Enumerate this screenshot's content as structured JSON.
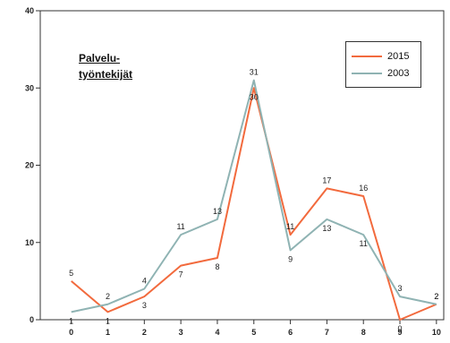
{
  "chart_data": {
    "type": "line",
    "title_lines": [
      "Palvelu-",
      "työntekijät"
    ],
    "x": [
      0,
      1,
      2,
      3,
      4,
      5,
      6,
      7,
      8,
      9,
      10
    ],
    "x_tick_labels": [
      "0",
      "1",
      "2",
      "3",
      "4",
      "5",
      "6",
      "7",
      "8",
      "9",
      "10"
    ],
    "y_tick_labels": [
      "0",
      "10",
      "20",
      "30",
      "40"
    ],
    "ylim": [
      0,
      40
    ],
    "xlim": [
      -0.85,
      10.2
    ],
    "grid": false,
    "legend_position": "top-right",
    "series": [
      {
        "name": "2015",
        "color": "#f26a3d",
        "values": [
          5,
          1,
          3,
          7,
          8,
          30,
          11,
          17,
          16,
          0,
          2
        ],
        "labels": [
          "5",
          "1",
          "3",
          "7",
          "8",
          "30",
          "11",
          "17",
          "16",
          "0",
          "2"
        ]
      },
      {
        "name": "2003",
        "color": "#8fb3b3",
        "values": [
          1,
          2,
          4,
          11,
          13,
          31,
          9,
          13,
          11,
          3,
          2
        ],
        "labels": [
          "1",
          "2",
          "4",
          "11",
          "13",
          "31",
          "9",
          "13",
          "11",
          "3",
          "2"
        ]
      }
    ]
  }
}
